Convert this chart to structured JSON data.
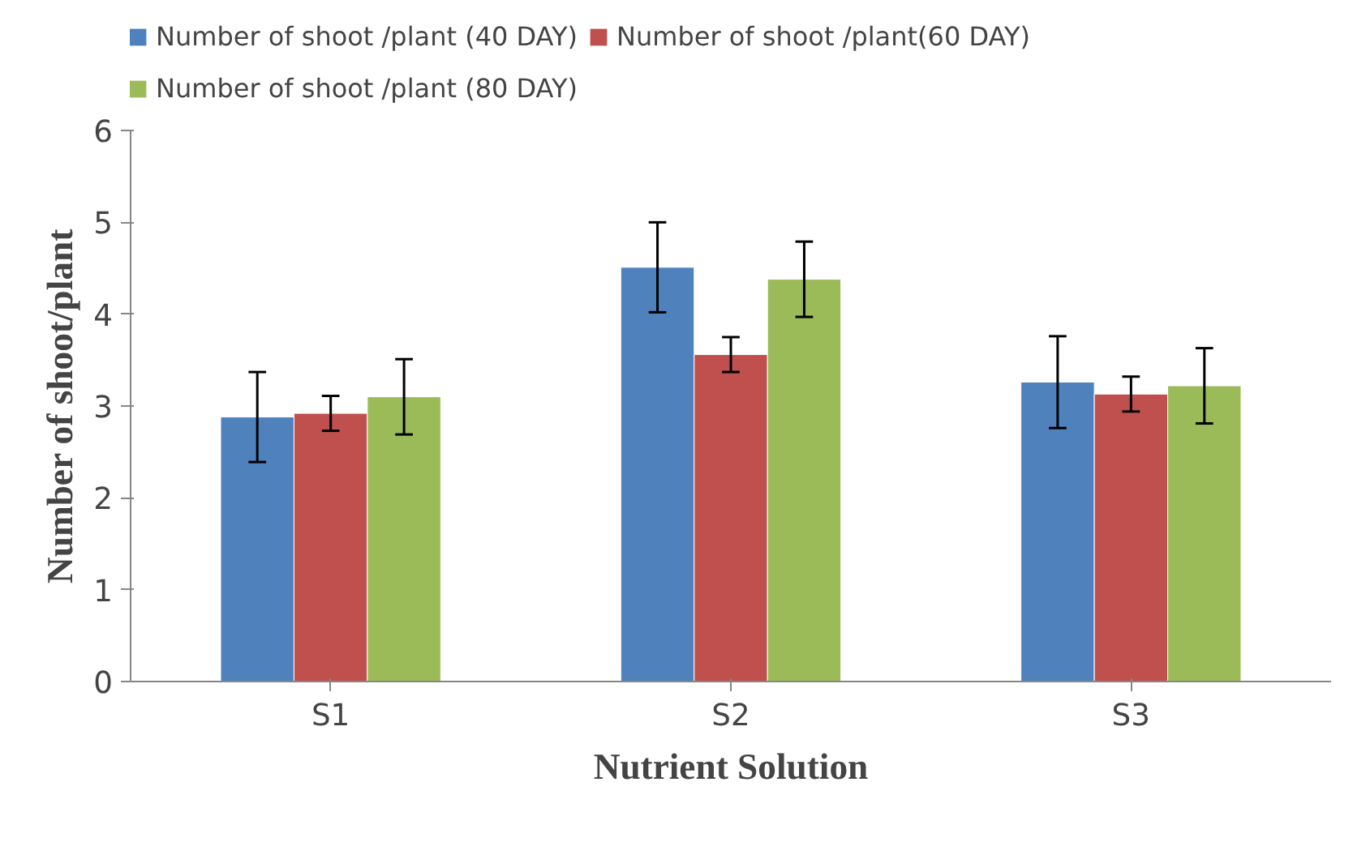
{
  "chart_data": {
    "type": "bar",
    "xlabel": "Nutrient Solution",
    "ylabel": "Number of shoot/plant",
    "categories": [
      "S1",
      "S2",
      "S3"
    ],
    "series": [
      {
        "name": "Number of shoot /plant (40 DAY)",
        "color": "#4f81bd",
        "values": [
          2.88,
          4.51,
          3.26
        ],
        "errors": [
          0.49,
          0.49,
          0.5
        ]
      },
      {
        "name": "Number of shoot /plant(60 DAY)",
        "color": "#c0504d",
        "values": [
          2.92,
          3.56,
          3.13
        ],
        "errors": [
          0.19,
          0.19,
          0.19
        ]
      },
      {
        "name": "Number of shoot /plant (80 DAY)",
        "color": "#9bbb59",
        "values": [
          3.1,
          4.38,
          3.22
        ],
        "errors": [
          0.41,
          0.41,
          0.41
        ]
      }
    ],
    "ylim": [
      0,
      6
    ],
    "yticks": [
      0,
      1,
      2,
      3,
      4,
      5,
      6
    ],
    "grid": false,
    "legend": "top"
  }
}
